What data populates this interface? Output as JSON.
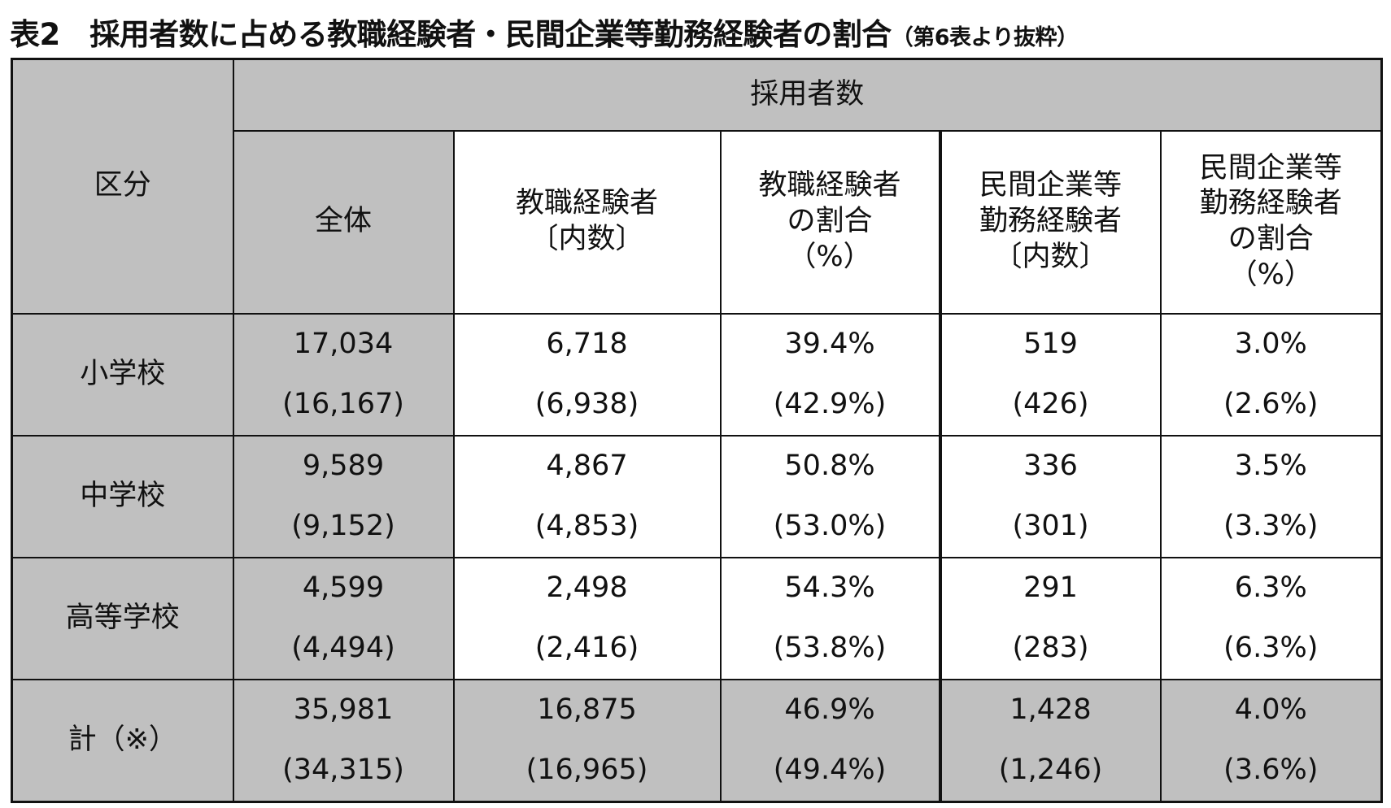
{
  "title": {
    "main": "表2　採用者数に占める教職経験者・民間企業等勤務経験者の割合",
    "note": "（第6表より抜粋）"
  },
  "header": {
    "category": "区分",
    "group": "採用者数",
    "columns": [
      "全体",
      "教職経験者〔内数〕",
      "教職経験者の割合（%）",
      "民間企業等勤務経験者〔内数〕",
      "民間企業等勤務経験者の割合（%）"
    ],
    "column_lines": [
      [
        "全体"
      ],
      [
        "教職経験者",
        "〔内数〕"
      ],
      [
        "教職経験者",
        "の割合",
        "（%）"
      ],
      [
        "民間企業等",
        "勤務経験者",
        "〔内数〕"
      ],
      [
        "民間企業等",
        "勤務経験者",
        "の割合",
        "（%）"
      ]
    ]
  },
  "rows": [
    {
      "label": "小学校",
      "values": [
        "17,034",
        "6,718",
        "39.4%",
        "519",
        "3.0%"
      ],
      "prev": [
        "(16,167)",
        "(6,938)",
        "(42.9%)",
        "(426)",
        "(2.6%)"
      ]
    },
    {
      "label": "中学校",
      "values": [
        "9,589",
        "4,867",
        "50.8%",
        "336",
        "3.5%"
      ],
      "prev": [
        "(9,152)",
        "(4,853)",
        "(53.0%)",
        "(301)",
        "(3.3%)"
      ]
    },
    {
      "label": "高等学校",
      "values": [
        "4,599",
        "2,498",
        "54.3%",
        "291",
        "6.3%"
      ],
      "prev": [
        "(4,494)",
        "(2,416)",
        "(53.8%)",
        "(283)",
        "(6.3%)"
      ]
    },
    {
      "label": "計（※）",
      "values": [
        "35,981",
        "16,875",
        "46.9%",
        "1,428",
        "4.0%"
      ],
      "prev": [
        "(34,315)",
        "(16,965)",
        "(49.4%)",
        "(1,246)",
        "(3.6%)"
      ]
    }
  ],
  "colors": {
    "header_fill": "#c0c0c0",
    "border": "#111111"
  }
}
